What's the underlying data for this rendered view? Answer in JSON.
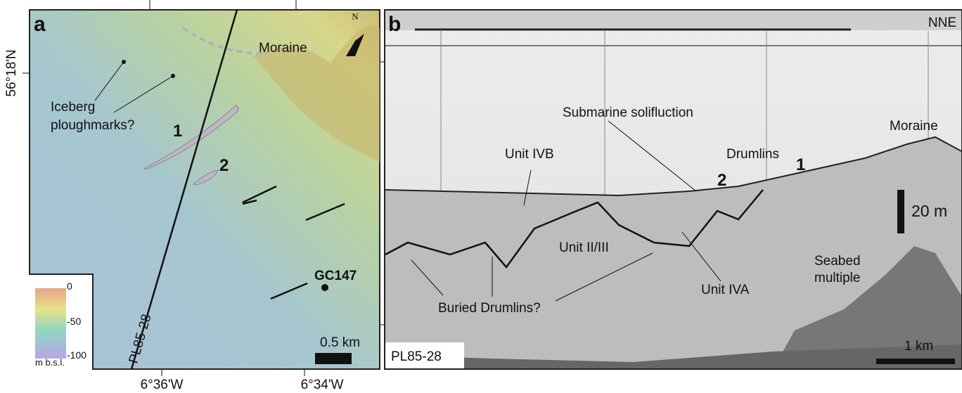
{
  "axes": {
    "latitude": "56°18'N",
    "longitudes": [
      "6°36'W",
      "6°34'W"
    ]
  },
  "panel_a": {
    "label": "a",
    "north": "N",
    "moraine": "Moraine",
    "ploughmarks": [
      "Iceberg",
      "ploughmarks?"
    ],
    "marker_1": "1",
    "marker_2": "2",
    "core": "GC147",
    "scale": "0.5 km",
    "profile_line": "PL85-28",
    "legend": {
      "ticks": [
        "0",
        "-50",
        "-100"
      ],
      "unit": "m b.s.l."
    }
  },
  "panel_b": {
    "label": "b",
    "direction": "NNE",
    "solifluction": "Submarine solifluction",
    "unit_ivb": "Unit IVB",
    "drumlins": "Drumlins",
    "marker_2": "2",
    "marker_1": "1",
    "moraine": "Moraine",
    "vertical_scale": "20 m",
    "unit_ii_iii": "Unit II/III",
    "seabed_multiple": [
      "Seabed",
      "multiple"
    ],
    "unit_iva": "Unit IVA",
    "buried_drumlins": "Buried Drumlins?",
    "scale": "1 km",
    "profile": "PL85-28"
  }
}
